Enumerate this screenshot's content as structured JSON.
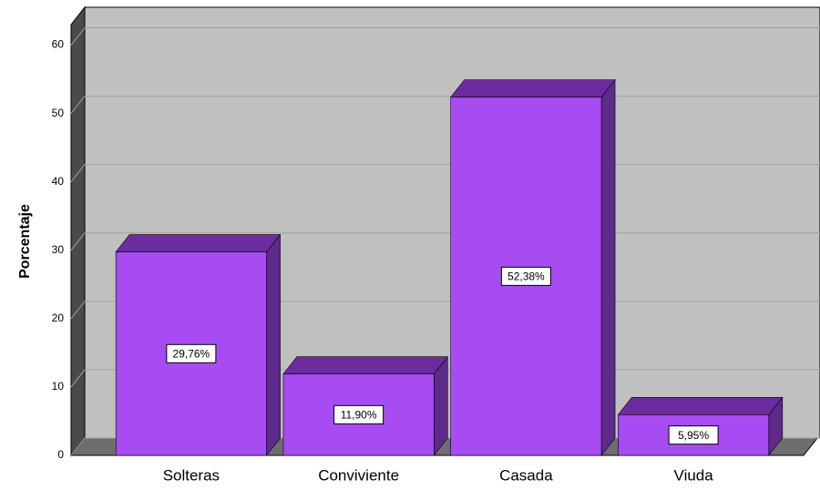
{
  "chart_data": {
    "type": "bar3d",
    "y_label": "Porcentaje",
    "categories": [
      "Solteras",
      "Conviviente",
      "Casada",
      "Viuda"
    ],
    "values": [
      29.76,
      11.9,
      52.38,
      5.95
    ],
    "value_labels": [
      "29,76%",
      "11,90%",
      "52,38%",
      "5,95%"
    ],
    "color": "#a64cf2",
    "ylim": [
      0,
      63
    ],
    "yticks": [
      0,
      10,
      20,
      30,
      40,
      50,
      60
    ],
    "grid": true
  }
}
